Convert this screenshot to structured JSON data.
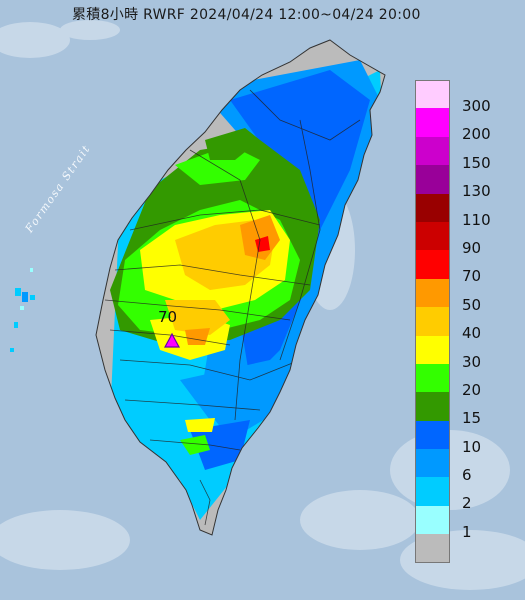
{
  "map": {
    "title": "累積8小時 RWRF 2024/04/24 12:00~04/24 20:00",
    "strait_label": "Formosa Strait",
    "station_value": "70",
    "sea_color": "#a9c3dc",
    "marker_color": "#ff00ff",
    "legend": [
      {
        "label": "300",
        "color": "#ffccff"
      },
      {
        "label": "200",
        "color": "#ff00ff"
      },
      {
        "label": "150",
        "color": "#cc00cc"
      },
      {
        "label": "130",
        "color": "#990099"
      },
      {
        "label": "110",
        "color": "#990000"
      },
      {
        "label": "90",
        "color": "#cc0000"
      },
      {
        "label": "70",
        "color": "#ff0000"
      },
      {
        "label": "50",
        "color": "#ff9900"
      },
      {
        "label": "40",
        "color": "#ffcc00"
      },
      {
        "label": "30",
        "color": "#ffff00"
      },
      {
        "label": "20",
        "color": "#33ff00"
      },
      {
        "label": "15",
        "color": "#339900"
      },
      {
        "label": "10",
        "color": "#0066ff"
      },
      {
        "label": "6",
        "color": "#0099ff"
      },
      {
        "label": "2",
        "color": "#00ccff"
      },
      {
        "label": "1",
        "color": "#99ffff"
      },
      {
        "label": "",
        "color": "#bbbbbb"
      }
    ]
  }
}
